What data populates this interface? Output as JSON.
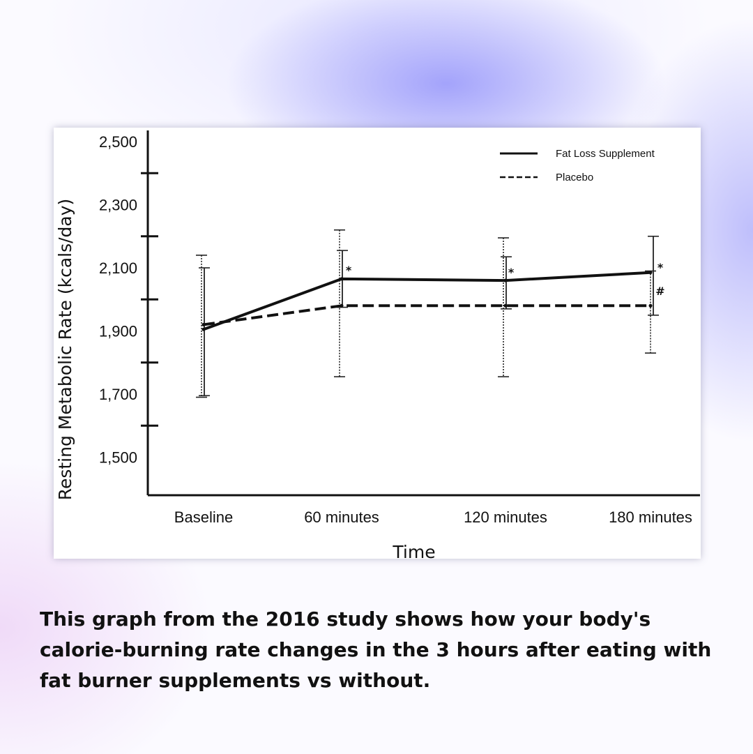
{
  "caption": "This graph from the 2016 study shows how your body's calorie-burning rate changes in the 3 hours after eating with fat burner supplements vs without.",
  "chart_data": {
    "type": "line",
    "title": "",
    "xlabel": "Time",
    "ylabel": "Resting Metabolic Rate (kcals/day)",
    "categories": [
      "Baseline",
      "60 minutes",
      "120 minutes",
      "180 minutes"
    ],
    "ylim": [
      1400,
      2550
    ],
    "y_tick_labels": [
      "2,500",
      "2,300",
      "2,100",
      "1,900",
      "1,700",
      "1,500"
    ],
    "y_tick_values": [
      2500,
      2300,
      2100,
      1900,
      1700,
      1500
    ],
    "y_minor_ticks": [
      2400,
      2200,
      2000,
      1800,
      1600
    ],
    "grid": false,
    "legend": "top-right",
    "series": [
      {
        "name": "Fat Loss Supplement",
        "style": "solid",
        "values": [
          1905,
          2065,
          2060,
          2085
        ],
        "error_low": [
          1695,
          1975,
          1970,
          1950
        ],
        "error_high": [
          2100,
          2155,
          2135,
          2200
        ],
        "markers": [
          "",
          "*",
          "*",
          "*"
        ]
      },
      {
        "name": "Placebo",
        "style": "dashed",
        "values": [
          1920,
          1980,
          1980,
          1980
        ],
        "error_low": [
          1690,
          1755,
          1755,
          1830
        ],
        "error_high": [
          2140,
          2220,
          2195,
          2090
        ],
        "markers": [
          "",
          "",
          "",
          "#"
        ]
      }
    ]
  }
}
